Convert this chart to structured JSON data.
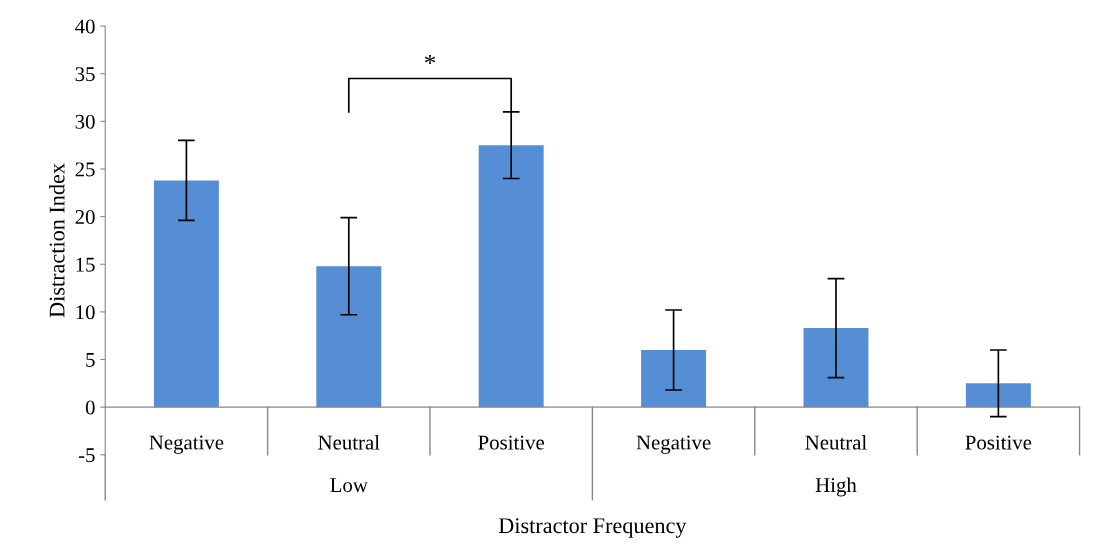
{
  "chart_data": {
    "type": "bar",
    "categories": [
      "Negative",
      "Neutral",
      "Positive",
      "Negative",
      "Neutral",
      "Positive"
    ],
    "values": [
      23.8,
      14.8,
      27.5,
      6.0,
      8.3,
      2.5
    ],
    "errors": [
      4.2,
      5.1,
      3.5,
      4.2,
      5.2,
      3.5
    ],
    "color": "#558ed5",
    "ylim": [
      -5,
      40
    ],
    "yticks": [
      -5,
      0,
      5,
      10,
      15,
      20,
      25,
      30,
      35,
      40
    ],
    "ylabel": "Distraction Index",
    "xlabel": "Distractor Frequency",
    "annotations": [
      "*",
      "Low",
      "High"
    ],
    "grid": false
  }
}
